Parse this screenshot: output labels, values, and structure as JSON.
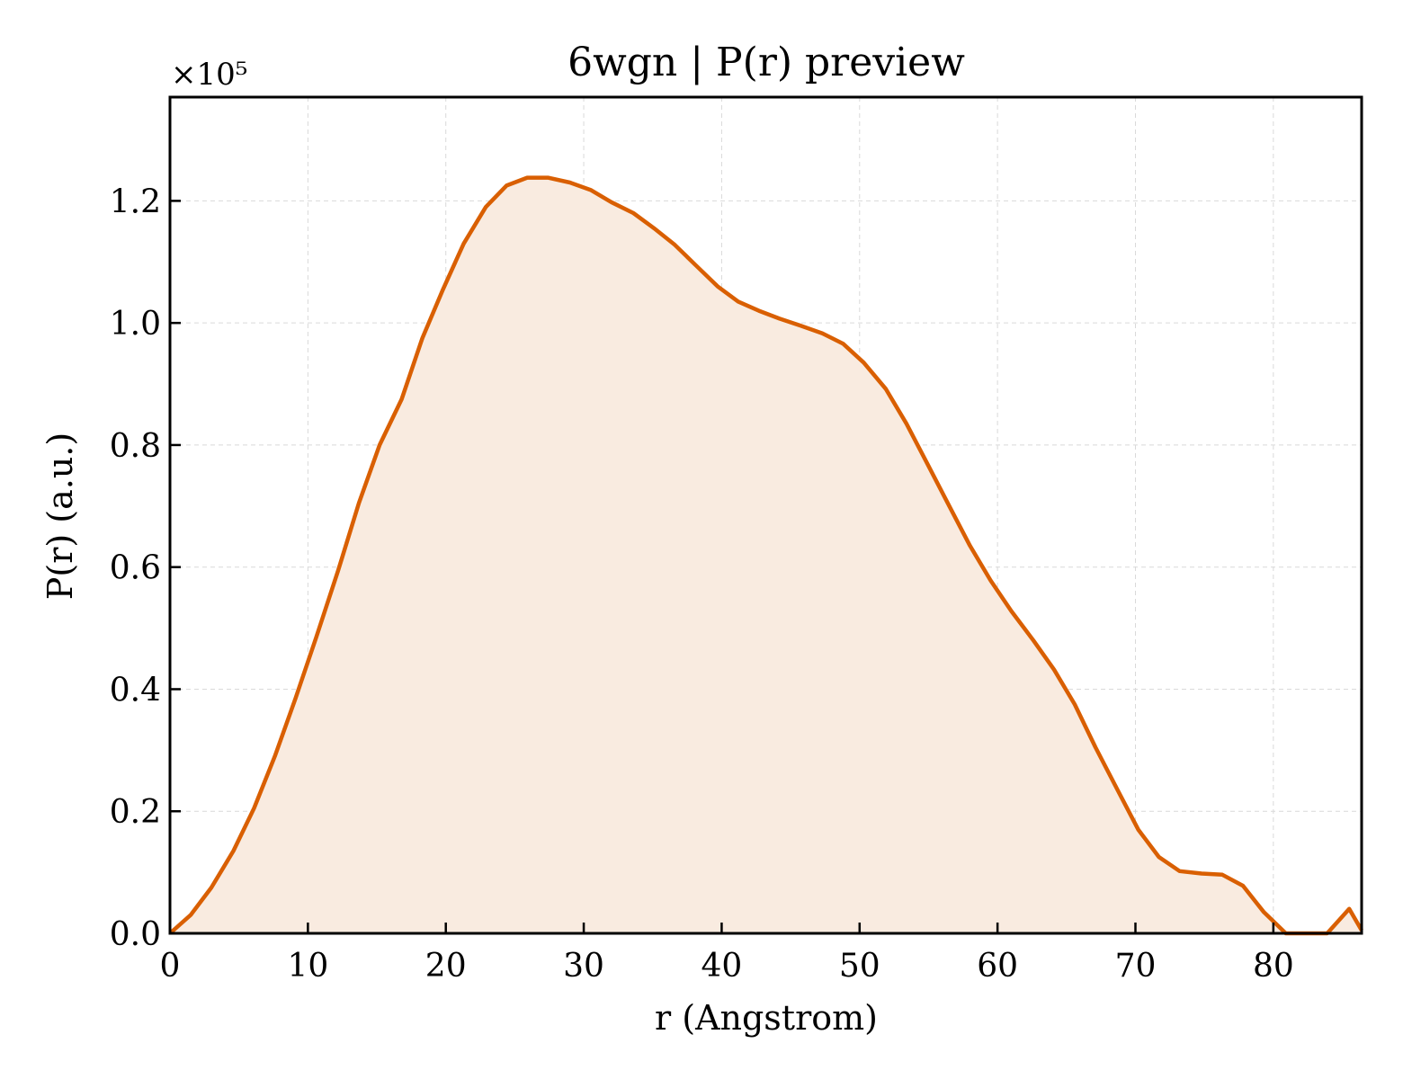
{
  "chart_data": {
    "type": "area",
    "title": "6wgn | P(r) preview",
    "xlabel": "r (Angstrom)",
    "ylabel": "P(r) (a.u.)",
    "y_multiplier_label": "×10⁵",
    "y_scale_factor": 100000,
    "xlim": [
      0,
      86.4
    ],
    "ylim": [
      0,
      1.37
    ],
    "x_ticks": [
      0,
      10,
      20,
      30,
      40,
      50,
      60,
      70,
      80
    ],
    "y_ticks": [
      0.0,
      0.2,
      0.4,
      0.6,
      0.8,
      1.0,
      1.2
    ],
    "y_tick_labels": [
      "0.0",
      "0.2",
      "0.4",
      "0.6",
      "0.8",
      "1.0",
      "1.2"
    ],
    "grid": true,
    "line_color": "#d95f02",
    "fill_color": "#f9ebe0",
    "series": [
      {
        "x": [
          0,
          1.5,
          3.0,
          4.6,
          6.1,
          7.6,
          9.1,
          10.6,
          12.2,
          13.7,
          15.2,
          16.8,
          18.3,
          19.8,
          21.3,
          22.9,
          24.4,
          25.9,
          27.4,
          29.0,
          30.5,
          32.0,
          33.6,
          35.1,
          36.6,
          38.1,
          39.7,
          41.2,
          42.7,
          44.2,
          45.8,
          47.3,
          48.8,
          50.3,
          51.9,
          53.4,
          54.9,
          56.5,
          58.0,
          59.5,
          61.0,
          62.6,
          64.1,
          65.6,
          67.1,
          68.7,
          70.2,
          71.7,
          73.2,
          74.8,
          76.3,
          77.8,
          79.3,
          80.9,
          82.4,
          83.9,
          85.5,
          86.4
        ],
        "y": [
          0.0,
          0.03,
          0.075,
          0.135,
          0.205,
          0.29,
          0.385,
          0.485,
          0.595,
          0.705,
          0.8,
          0.875,
          0.975,
          1.055,
          1.13,
          1.19,
          1.225,
          1.238,
          1.238,
          1.23,
          1.218,
          1.198,
          1.18,
          1.155,
          1.128,
          1.095,
          1.06,
          1.035,
          1.02,
          1.007,
          0.995,
          0.983,
          0.966,
          0.935,
          0.892,
          0.835,
          0.77,
          0.7,
          0.635,
          0.578,
          0.528,
          0.48,
          0.432,
          0.375,
          0.305,
          0.235,
          0.17,
          0.125,
          0.102,
          0.098,
          0.096,
          0.078,
          0.035,
          -0.01,
          -0.01,
          -0.01,
          0.04,
          0.005
        ]
      }
    ]
  }
}
